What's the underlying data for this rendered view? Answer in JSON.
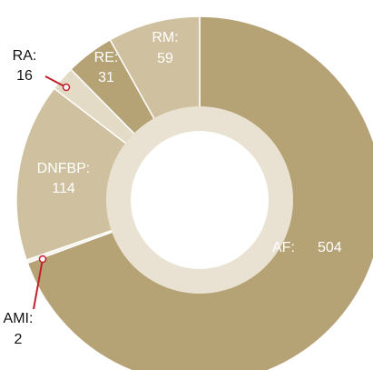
{
  "chart_data": {
    "type": "donut",
    "categories": [
      "AF:",
      "AMI:",
      "DNFBP:",
      "RA:",
      "RE:",
      "RM:"
    ],
    "values": [
      504,
      2,
      114,
      16,
      31,
      59
    ],
    "colors": [
      "#b5a275",
      "#f3efe6",
      "#cfc19f",
      "#e4dbc6",
      "#b5a275",
      "#cfc19f"
    ]
  }
}
